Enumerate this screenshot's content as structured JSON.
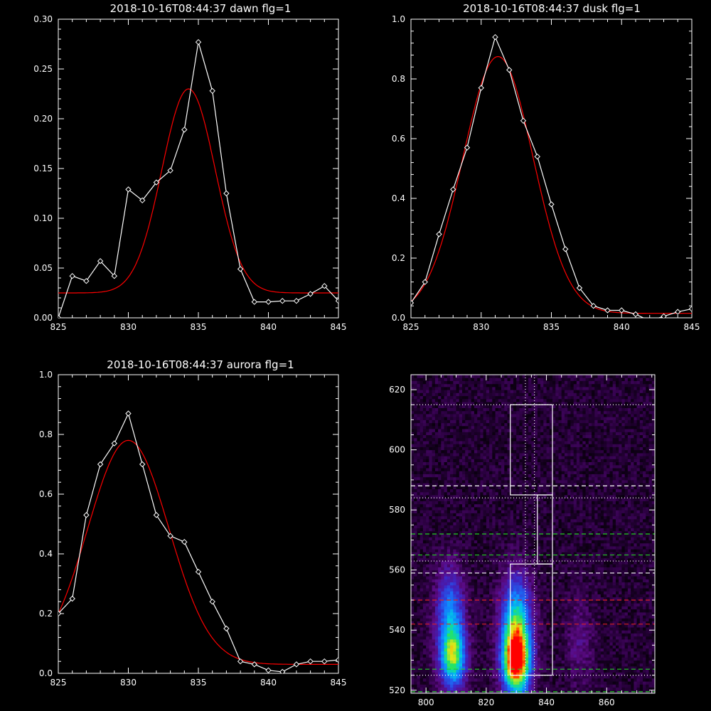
{
  "colors": {
    "background": "#000000",
    "axes": "#ffffff",
    "data": "#ffffff",
    "fit": "#ff0000",
    "green_lines": "#22cc22",
    "red_lines": "#dd2222",
    "white_lines": "#ffffff"
  },
  "chart_data": [
    {
      "type": "line",
      "title": "2018-10-16T08:44:37 dawn flg=1",
      "xlim": [
        825,
        845
      ],
      "ylim": [
        0,
        0.3
      ],
      "xticks": [
        825,
        830,
        835,
        840,
        845
      ],
      "yticks": [
        0.0,
        0.05,
        0.1,
        0.15,
        0.2,
        0.25,
        0.3
      ],
      "ytick_labels": [
        "0.00",
        "0.05",
        "0.10",
        "0.15",
        "0.20",
        "0.25",
        "0.30"
      ],
      "series": [
        {
          "role": "data",
          "marker": "diamond",
          "x": [
            825,
            826,
            827,
            828,
            829,
            830,
            831,
            832,
            833,
            834,
            835,
            836,
            837,
            838,
            839,
            840,
            841,
            842,
            843,
            844,
            845
          ],
          "y": [
            0.0,
            0.042,
            0.037,
            0.057,
            0.042,
            0.129,
            0.118,
            0.136,
            0.148,
            0.189,
            0.277,
            0.228,
            0.125,
            0.049,
            0.016,
            0.016,
            0.017,
            0.017,
            0.024,
            0.032,
            0.017
          ]
        },
        {
          "role": "fit",
          "model": "gaussian",
          "amplitude": 0.205,
          "center": 834.3,
          "sigma": 1.9,
          "baseline": 0.025
        }
      ]
    },
    {
      "type": "line",
      "title": "2018-10-16T08:44:37 dusk flg=1",
      "xlim": [
        825,
        845
      ],
      "ylim": [
        0,
        1.0
      ],
      "xticks": [
        825,
        830,
        835,
        840,
        845
      ],
      "yticks": [
        0.0,
        0.2,
        0.4,
        0.6,
        0.8,
        1.0
      ],
      "ytick_labels": [
        "0.0",
        "0.2",
        "0.4",
        "0.6",
        "0.8",
        "1.0"
      ],
      "series": [
        {
          "role": "data",
          "marker": "diamond",
          "x": [
            825,
            826,
            827,
            828,
            829,
            830,
            831,
            832,
            833,
            834,
            835,
            836,
            837,
            838,
            839,
            840,
            841,
            842,
            843,
            844,
            845
          ],
          "y": [
            0.05,
            0.12,
            0.28,
            0.43,
            0.57,
            0.77,
            0.94,
            0.83,
            0.66,
            0.54,
            0.38,
            0.23,
            0.1,
            0.04,
            0.025,
            0.025,
            0.012,
            -0.01,
            0.005,
            0.02,
            0.03
          ]
        },
        {
          "role": "fit",
          "model": "gaussian",
          "amplitude": 0.86,
          "center": 831.2,
          "sigma": 2.5,
          "baseline": 0.015
        }
      ]
    },
    {
      "type": "line",
      "title": "2018-10-16T08:44:37 aurora flg=1",
      "xlim": [
        825,
        845
      ],
      "ylim": [
        0,
        1.0
      ],
      "xticks": [
        825,
        830,
        835,
        840,
        845
      ],
      "yticks": [
        0.0,
        0.2,
        0.4,
        0.6,
        0.8,
        1.0
      ],
      "ytick_labels": [
        "0.0",
        "0.2",
        "0.4",
        "0.6",
        "0.8",
        "1.0"
      ],
      "series": [
        {
          "role": "data",
          "marker": "diamond",
          "x": [
            825,
            826,
            827,
            828,
            829,
            830,
            831,
            832,
            833,
            834,
            835,
            836,
            837,
            838,
            839,
            840,
            841,
            842,
            843,
            844,
            845
          ],
          "y": [
            0.2,
            0.25,
            0.53,
            0.7,
            0.77,
            0.87,
            0.7,
            0.53,
            0.46,
            0.44,
            0.34,
            0.24,
            0.15,
            0.04,
            0.03,
            0.01,
            0.005,
            0.03,
            0.04,
            0.04,
            0.045
          ]
        },
        {
          "role": "fit",
          "model": "gaussian",
          "amplitude": 0.75,
          "center": 830.0,
          "sigma": 2.9,
          "baseline": 0.03
        }
      ]
    },
    {
      "type": "heatmap",
      "title": "",
      "xlim": [
        795,
        876
      ],
      "ylim": [
        519,
        625
      ],
      "xticks": [
        800,
        820,
        840,
        860
      ],
      "yticks": [
        520,
        540,
        560,
        580,
        600,
        620
      ],
      "sources": [
        {
          "x": 830,
          "y": 530,
          "sx": 3.2,
          "sy": 8,
          "amp": 1.0
        },
        {
          "x": 830,
          "y": 545,
          "sx": 3.5,
          "sy": 10,
          "amp": 0.45
        },
        {
          "x": 809,
          "y": 531,
          "sx": 3.0,
          "sy": 7,
          "amp": 0.62
        },
        {
          "x": 808,
          "y": 546,
          "sx": 3.2,
          "sy": 10,
          "amp": 0.38
        },
        {
          "x": 851,
          "y": 536,
          "sx": 3.0,
          "sy": 10,
          "amp": 0.12
        }
      ],
      "white_dotted_h": [
        615,
        584,
        563,
        525
      ],
      "white_dotted_v": [
        833,
        836
      ],
      "white_dashed_h": [
        588,
        559
      ],
      "green_dashed_h": [
        572,
        565,
        527,
        519.5
      ],
      "red_dashed_h": [
        550,
        542
      ],
      "boxes": [
        {
          "x0": 828,
          "x1": 842,
          "y0": 585,
          "y1": 615
        },
        {
          "x0": 837,
          "x1": 842,
          "y0": 562,
          "y1": 585
        },
        {
          "x0": 828,
          "x1": 842,
          "y0": 525,
          "y1": 562
        }
      ]
    }
  ]
}
